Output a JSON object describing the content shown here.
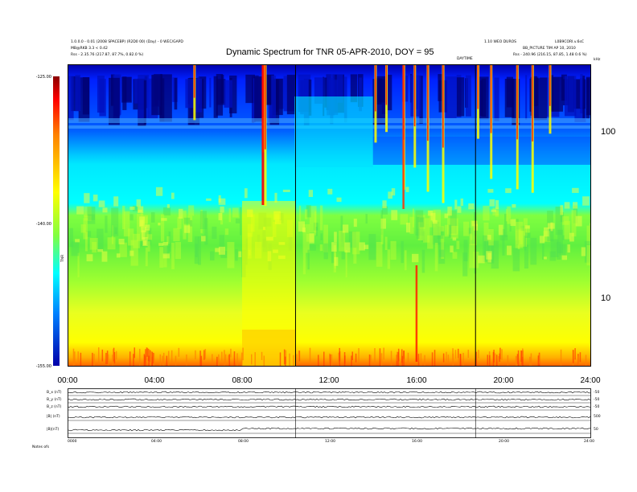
{
  "header": {
    "title": "Dynamic Spectrum for TNR 05-APR-2010, DOY = 95",
    "left_line1": "1.0.0.0 - 0.01 (2008 SPACEBP) (R2D0 00) (Day) - 0 WEC/GAPD",
    "left_line2": "MB@RKB 3.3 < 0.42",
    "left_line3": "Rss  -  2.35.76 (217.87, 87.7%, 0.82.0 %)",
    "right_line1": "1.10 WEO DUROS",
    "right_line2": "L0B9CORI.v.6sC",
    "right_line3": "BB_PICTURE TIM AP 10, 2010",
    "right_line4": "Rss  -  240.96 (216.15, 87.85, 1.48 0.6 %)",
    "small_center": "DAYTIME",
    "freq_unit": "kHz"
  },
  "chart_data": {
    "type": "heatmap",
    "title": "Dynamic Spectrum for TNR 05-APR-2010, DOY = 95",
    "x_ticks": [
      "00:00",
      "04:00",
      "08:00",
      "12:00",
      "16:00",
      "20:00",
      "24:00"
    ],
    "x_range_hours": [
      0,
      24
    ],
    "y_scale": "log",
    "y_ticks": [
      10,
      100
    ],
    "y_range_khz": [
      4,
      270
    ],
    "colorbar": {
      "label": "TNR",
      "ticks": [
        "-125.00",
        "-140.00",
        "-155.00"
      ],
      "range": [
        -155,
        -125
      ],
      "colors": [
        "#8b0000",
        "#ff0000",
        "#ff8000",
        "#ffff00",
        "#80ff40",
        "#00ffff",
        "#0080ff",
        "#0000aa"
      ]
    },
    "vertical_markers_hours": [
      10.45,
      18.7
    ]
  },
  "panels": {
    "labels": [
      "B_x (nT)",
      "B_y (nT)",
      "B_z (nT)",
      "|B| (nT)",
      "|B|(nT)"
    ],
    "right_values": [
      "-50",
      "-50",
      "-50",
      "500",
      "50"
    ],
    "x_ticks": [
      "0000",
      "04:00",
      "08:00",
      "12:00",
      "16:00",
      "20:00",
      "24:00"
    ],
    "footer_left": "Notes   ofs"
  }
}
